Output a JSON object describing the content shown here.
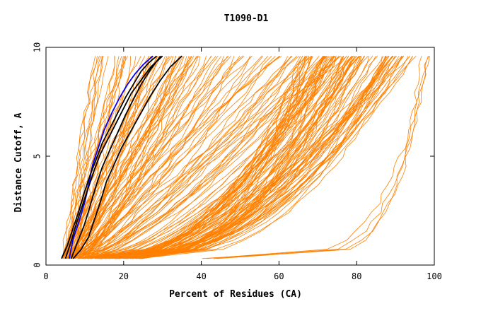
{
  "chart_data": {
    "type": "line",
    "title": "T1090-D1",
    "xlabel": "Percent of Residues (CA)",
    "ylabel": "Distance Cutoff, A",
    "xlim": [
      0,
      100
    ],
    "ylim": [
      0,
      10
    ],
    "x_ticks": [
      "0",
      "20",
      "40",
      "60",
      "80",
      "100"
    ],
    "y_ticks": [
      "0",
      "5",
      "10"
    ],
    "grid": false,
    "colors": {
      "models": "#ff8000",
      "highlight": "#0000ff",
      "reference": "#000000"
    },
    "series": [
      {
        "name": "highlight-blue",
        "color": "#0000ff",
        "x": [
          6,
          7,
          8.5,
          10,
          11,
          12,
          13.5,
          15,
          17,
          19,
          21,
          23,
          25,
          27.5
        ],
        "y": [
          0.3,
          1.2,
          2.0,
          2.9,
          3.7,
          4.6,
          5.4,
          6.2,
          7.0,
          7.7,
          8.3,
          8.8,
          9.2,
          9.6
        ]
      },
      {
        "name": "reference-black-1",
        "color": "#000000",
        "x": [
          4,
          5.5,
          7,
          8.5,
          10,
          11.5,
          13,
          14.5,
          16.5,
          18.5,
          20.5,
          22.5,
          24.5,
          26.5,
          28.5
        ],
        "y": [
          0.3,
          0.9,
          1.7,
          2.5,
          3.4,
          4.2,
          4.9,
          5.6,
          6.3,
          7.0,
          7.7,
          8.3,
          8.9,
          9.3,
          9.6
        ]
      },
      {
        "name": "reference-black-2",
        "color": "#000000",
        "x": [
          6.5,
          8,
          10,
          11.5,
          13,
          14.5,
          16.5,
          18.5,
          20.5,
          22.5,
          24.5,
          27,
          29.5
        ],
        "y": [
          0.3,
          1.0,
          1.9,
          2.8,
          3.7,
          4.5,
          5.3,
          6.1,
          6.9,
          7.6,
          8.3,
          9.0,
          9.6
        ]
      },
      {
        "name": "reference-black-3",
        "color": "#000000",
        "x": [
          7,
          9,
          11,
          12.5,
          14,
          15.5,
          17.5,
          19.5,
          22,
          24.5,
          27,
          29.5,
          32,
          35
        ],
        "y": [
          0.3,
          0.7,
          1.3,
          2.1,
          2.9,
          3.8,
          4.6,
          5.4,
          6.2,
          7.0,
          7.8,
          8.5,
          9.1,
          9.6
        ]
      },
      {
        "name": "reference-black-4",
        "color": "#000000",
        "x": [
          5,
          6.5,
          8,
          9.5,
          11,
          12.5,
          14,
          16,
          18,
          20,
          22,
          24.5,
          27,
          30
        ],
        "y": [
          0.3,
          1.1,
          2.0,
          2.8,
          3.6,
          4.4,
          5.1,
          5.8,
          6.5,
          7.2,
          7.9,
          8.5,
          9.1,
          9.6
        ]
      }
    ],
    "model_families": [
      {
        "name": "steep-left",
        "count": 45,
        "start_x": [
          4,
          9
        ],
        "end_x": [
          12,
          40
        ],
        "shape": 1.0
      },
      {
        "name": "middle-spread",
        "count": 55,
        "start_x": [
          5,
          12
        ],
        "end_x": [
          30,
          80
        ],
        "shape": 1.2
      },
      {
        "name": "concave-right",
        "count": 95,
        "start_x": [
          8,
          25
        ],
        "end_x": [
          66,
          95
        ],
        "shape": 2.2
      },
      {
        "name": "late-right",
        "count": 4,
        "start_x": [
          40,
          45
        ],
        "end_x": [
          94,
          100
        ],
        "shape": 6.0
      }
    ]
  }
}
